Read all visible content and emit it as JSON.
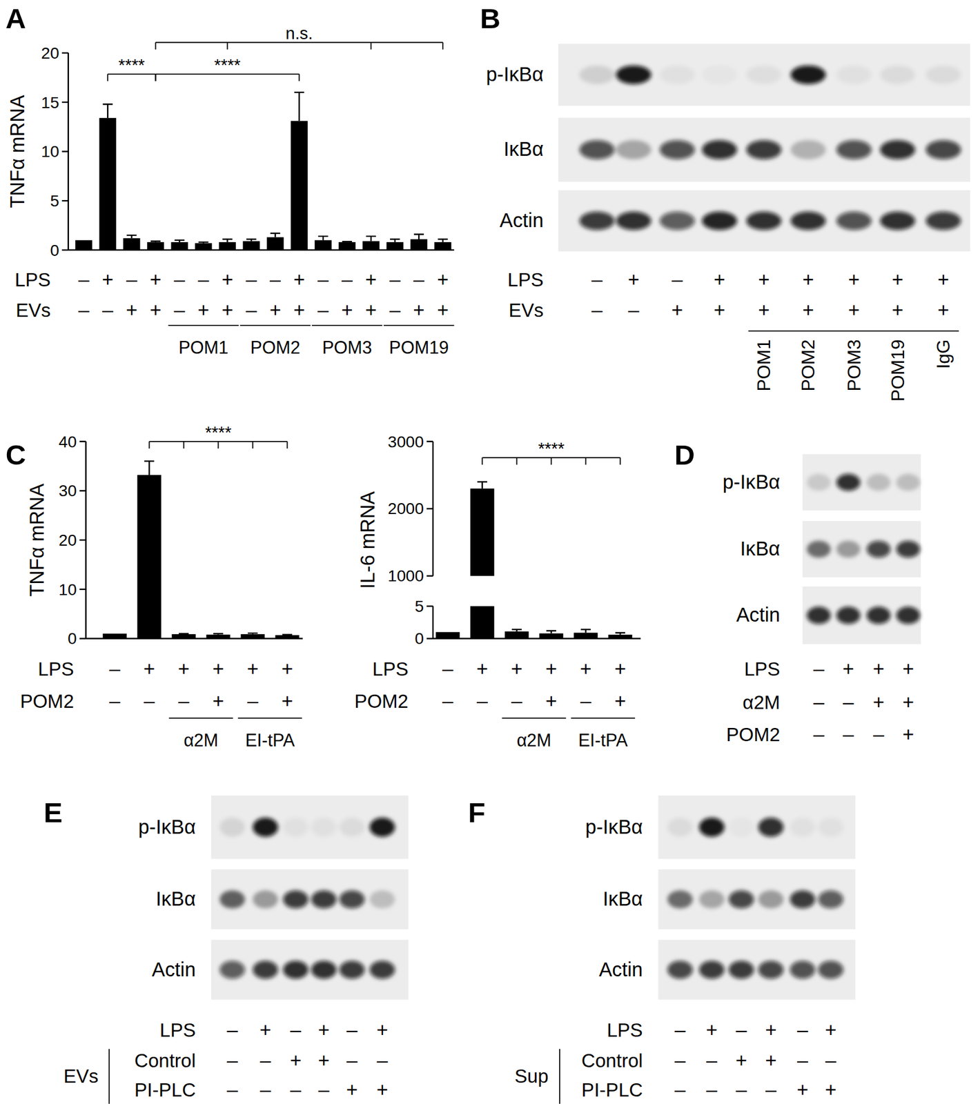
{
  "chart_data": [
    {
      "panel": "A",
      "type": "bar",
      "y_label": "TNFα mRNA",
      "color": "#000000",
      "categories": [
        null,
        null,
        null,
        null,
        null,
        null,
        null,
        null,
        null,
        null,
        null,
        null,
        null,
        null,
        null,
        null
      ],
      "values": [
        1.0,
        13.4,
        1.2,
        0.8,
        0.8,
        0.7,
        0.8,
        0.9,
        1.3,
        13.1,
        1.0,
        0.8,
        0.9,
        0.8,
        1.1,
        0.8
      ],
      "errors": [
        0,
        1.4,
        0.3,
        0.1,
        0.2,
        0.1,
        0.3,
        0.2,
        0.4,
        2.9,
        0.4,
        0.05,
        0.5,
        0.3,
        0.5,
        0.3
      ],
      "ylim": [
        0,
        20
      ],
      "yticks": [
        0,
        5,
        10,
        15,
        20
      ],
      "x_table": {
        "rows": [
          {
            "label": "LPS",
            "values": [
              "–",
              "+",
              "–",
              "+",
              "–",
              "–",
              "+",
              "–",
              "–",
              "+",
              "–",
              "–",
              "+",
              "–",
              "–",
              "+"
            ]
          },
          {
            "label": "EVs",
            "values": [
              "–",
              "–",
              "+",
              "+",
              "–",
              "+",
              "+",
              "–",
              "+",
              "+",
              "–",
              "+",
              "+",
              "–",
              "+",
              "+"
            ]
          }
        ],
        "groups": [
          {
            "label": "POM1",
            "from": 4,
            "to": 6
          },
          {
            "label": "POM2",
            "from": 7,
            "to": 9
          },
          {
            "label": "POM3",
            "from": 10,
            "to": 12
          },
          {
            "label": "POM19",
            "from": 13,
            "to": 15
          }
        ]
      },
      "annotations": [
        {
          "text": "****",
          "from": 1,
          "to": [
            3
          ]
        },
        {
          "text": "****",
          "from": 3,
          "to": [
            9
          ]
        },
        {
          "text": "n.s.",
          "from": 3,
          "to": [
            6,
            12,
            15
          ]
        }
      ]
    },
    {
      "panel": "C",
      "type": "bar",
      "y_label": "TNFα mRNA",
      "color": "#000000",
      "categories": [
        null,
        null,
        null,
        null,
        null,
        null
      ],
      "values": [
        1.0,
        33.2,
        0.9,
        0.8,
        0.9,
        0.7
      ],
      "errors": [
        0,
        2.8,
        0.1,
        0.2,
        0.2,
        0.1
      ],
      "ylim": [
        0,
        40
      ],
      "yticks": [
        0,
        10,
        20,
        30,
        40
      ],
      "x_table": {
        "rows": [
          {
            "label": "LPS",
            "values": [
              "–",
              "+",
              "+",
              "+",
              "+",
              "+"
            ]
          },
          {
            "label": "POM2",
            "values": [
              "–",
              "–",
              "–",
              "+",
              "–",
              "+"
            ]
          }
        ],
        "groups": [
          {
            "label": "α2M",
            "from": 2,
            "to": 3
          },
          {
            "label": "EI-tPA",
            "from": 4,
            "to": 5
          }
        ]
      },
      "annotations": [
        {
          "text": "****",
          "from": 1,
          "to": [
            2,
            3,
            4,
            5
          ]
        }
      ]
    },
    {
      "type": "bar",
      "y_label": "IL-6 mRNA",
      "color": "#000000",
      "categories": [
        null,
        null,
        null,
        null,
        null,
        null
      ],
      "values": [
        1.0,
        2300,
        1.1,
        0.8,
        0.9,
        0.6
      ],
      "errors": [
        0,
        100,
        0.3,
        0.4,
        0.5,
        0.3
      ],
      "ylim": [
        0,
        3000
      ],
      "y_break": [
        5,
        1000
      ],
      "yticks": [
        0,
        5,
        1000,
        2000,
        3000
      ],
      "x_table": {
        "rows": [
          {
            "label": "LPS",
            "values": [
              "–",
              "+",
              "+",
              "+",
              "+",
              "+"
            ]
          },
          {
            "label": "POM2",
            "values": [
              "–",
              "–",
              "–",
              "+",
              "–",
              "+"
            ]
          }
        ],
        "groups": [
          {
            "label": "α2M",
            "from": 2,
            "to": 3
          },
          {
            "label": "EI-tPA",
            "from": 4,
            "to": 5
          }
        ]
      },
      "annotations": [
        {
          "text": "****",
          "from": 1,
          "to": [
            2,
            3,
            4,
            5
          ]
        }
      ]
    }
  ],
  "blots": [
    {
      "panel": "B",
      "rows": [
        {
          "label": "p-IκBα",
          "bands": [
            0.12,
            0.95,
            0.05,
            0.03,
            0.06,
            0.95,
            0.05,
            0.07,
            0.07
          ]
        },
        {
          "label": "IκBα",
          "bands": [
            0.7,
            0.3,
            0.7,
            0.85,
            0.8,
            0.25,
            0.7,
            0.85,
            0.75
          ]
        },
        {
          "label": "Actin",
          "bands": [
            0.8,
            0.85,
            0.65,
            0.9,
            0.85,
            0.85,
            0.7,
            0.85,
            0.8
          ]
        }
      ],
      "conditions": [
        {
          "label": "LPS",
          "values": [
            "–",
            "+",
            "–",
            "+",
            "+",
            "+",
            "+",
            "+",
            "+"
          ]
        },
        {
          "label": "EVs",
          "values": [
            "–",
            "–",
            "+",
            "+",
            "+",
            "+",
            "+",
            "+",
            "+"
          ]
        }
      ],
      "lane_labels": [
        null,
        null,
        null,
        null,
        "POM1",
        "POM2",
        "POM3",
        "POM19",
        "IgG"
      ]
    },
    {
      "panel": "D",
      "rows": [
        {
          "label": "p-IκBα",
          "bands": [
            0.15,
            0.85,
            0.2,
            0.2
          ]
        },
        {
          "label": "IκBα",
          "bands": [
            0.55,
            0.35,
            0.75,
            0.8
          ]
        },
        {
          "label": "Actin",
          "bands": [
            0.85,
            0.85,
            0.85,
            0.85
          ]
        }
      ],
      "conditions": [
        {
          "label": "LPS",
          "values": [
            "–",
            "+",
            "+",
            "+"
          ]
        },
        {
          "label": "α2M",
          "values": [
            "–",
            "–",
            "+",
            "+"
          ]
        },
        {
          "label": "POM2",
          "values": [
            "–",
            "–",
            "–",
            "+"
          ]
        }
      ]
    },
    {
      "panel": "E",
      "rows": [
        {
          "label": "p-IκBα",
          "bands": [
            0.1,
            0.95,
            0.05,
            0.05,
            0.07,
            0.95
          ]
        },
        {
          "label": "IκBα",
          "bands": [
            0.6,
            0.35,
            0.8,
            0.8,
            0.75,
            0.2
          ]
        },
        {
          "label": "Actin",
          "bands": [
            0.65,
            0.8,
            0.85,
            0.85,
            0.8,
            0.8
          ]
        }
      ],
      "conditions": [
        {
          "label": "LPS",
          "values": [
            "–",
            "+",
            "–",
            "+",
            "–",
            "+"
          ]
        },
        {
          "label": "Control",
          "values": [
            "–",
            "–",
            "+",
            "+",
            "–",
            "–"
          ]
        },
        {
          "label": "PI-PLC",
          "values": [
            "–",
            "–",
            "–",
            "–",
            "+",
            "+"
          ]
        }
      ],
      "condition_group": {
        "label": "EVs",
        "from": 1,
        "to": 2
      }
    },
    {
      "panel": "F",
      "rows": [
        {
          "label": "p-IκBα",
          "bands": [
            0.07,
            0.95,
            0.03,
            0.85,
            0.05,
            0.05
          ]
        },
        {
          "label": "IκBα",
          "bands": [
            0.55,
            0.3,
            0.75,
            0.35,
            0.8,
            0.65
          ]
        },
        {
          "label": "Actin",
          "bands": [
            0.75,
            0.8,
            0.8,
            0.75,
            0.7,
            0.7
          ]
        }
      ],
      "conditions": [
        {
          "label": "LPS",
          "values": [
            "–",
            "+",
            "–",
            "+",
            "–",
            "+"
          ]
        },
        {
          "label": "Control",
          "values": [
            "–",
            "–",
            "+",
            "+",
            "–",
            "–"
          ]
        },
        {
          "label": "PI-PLC",
          "values": [
            "–",
            "–",
            "–",
            "–",
            "+",
            "+"
          ]
        }
      ],
      "condition_group": {
        "label": "Sup",
        "from": 1,
        "to": 2
      }
    }
  ]
}
